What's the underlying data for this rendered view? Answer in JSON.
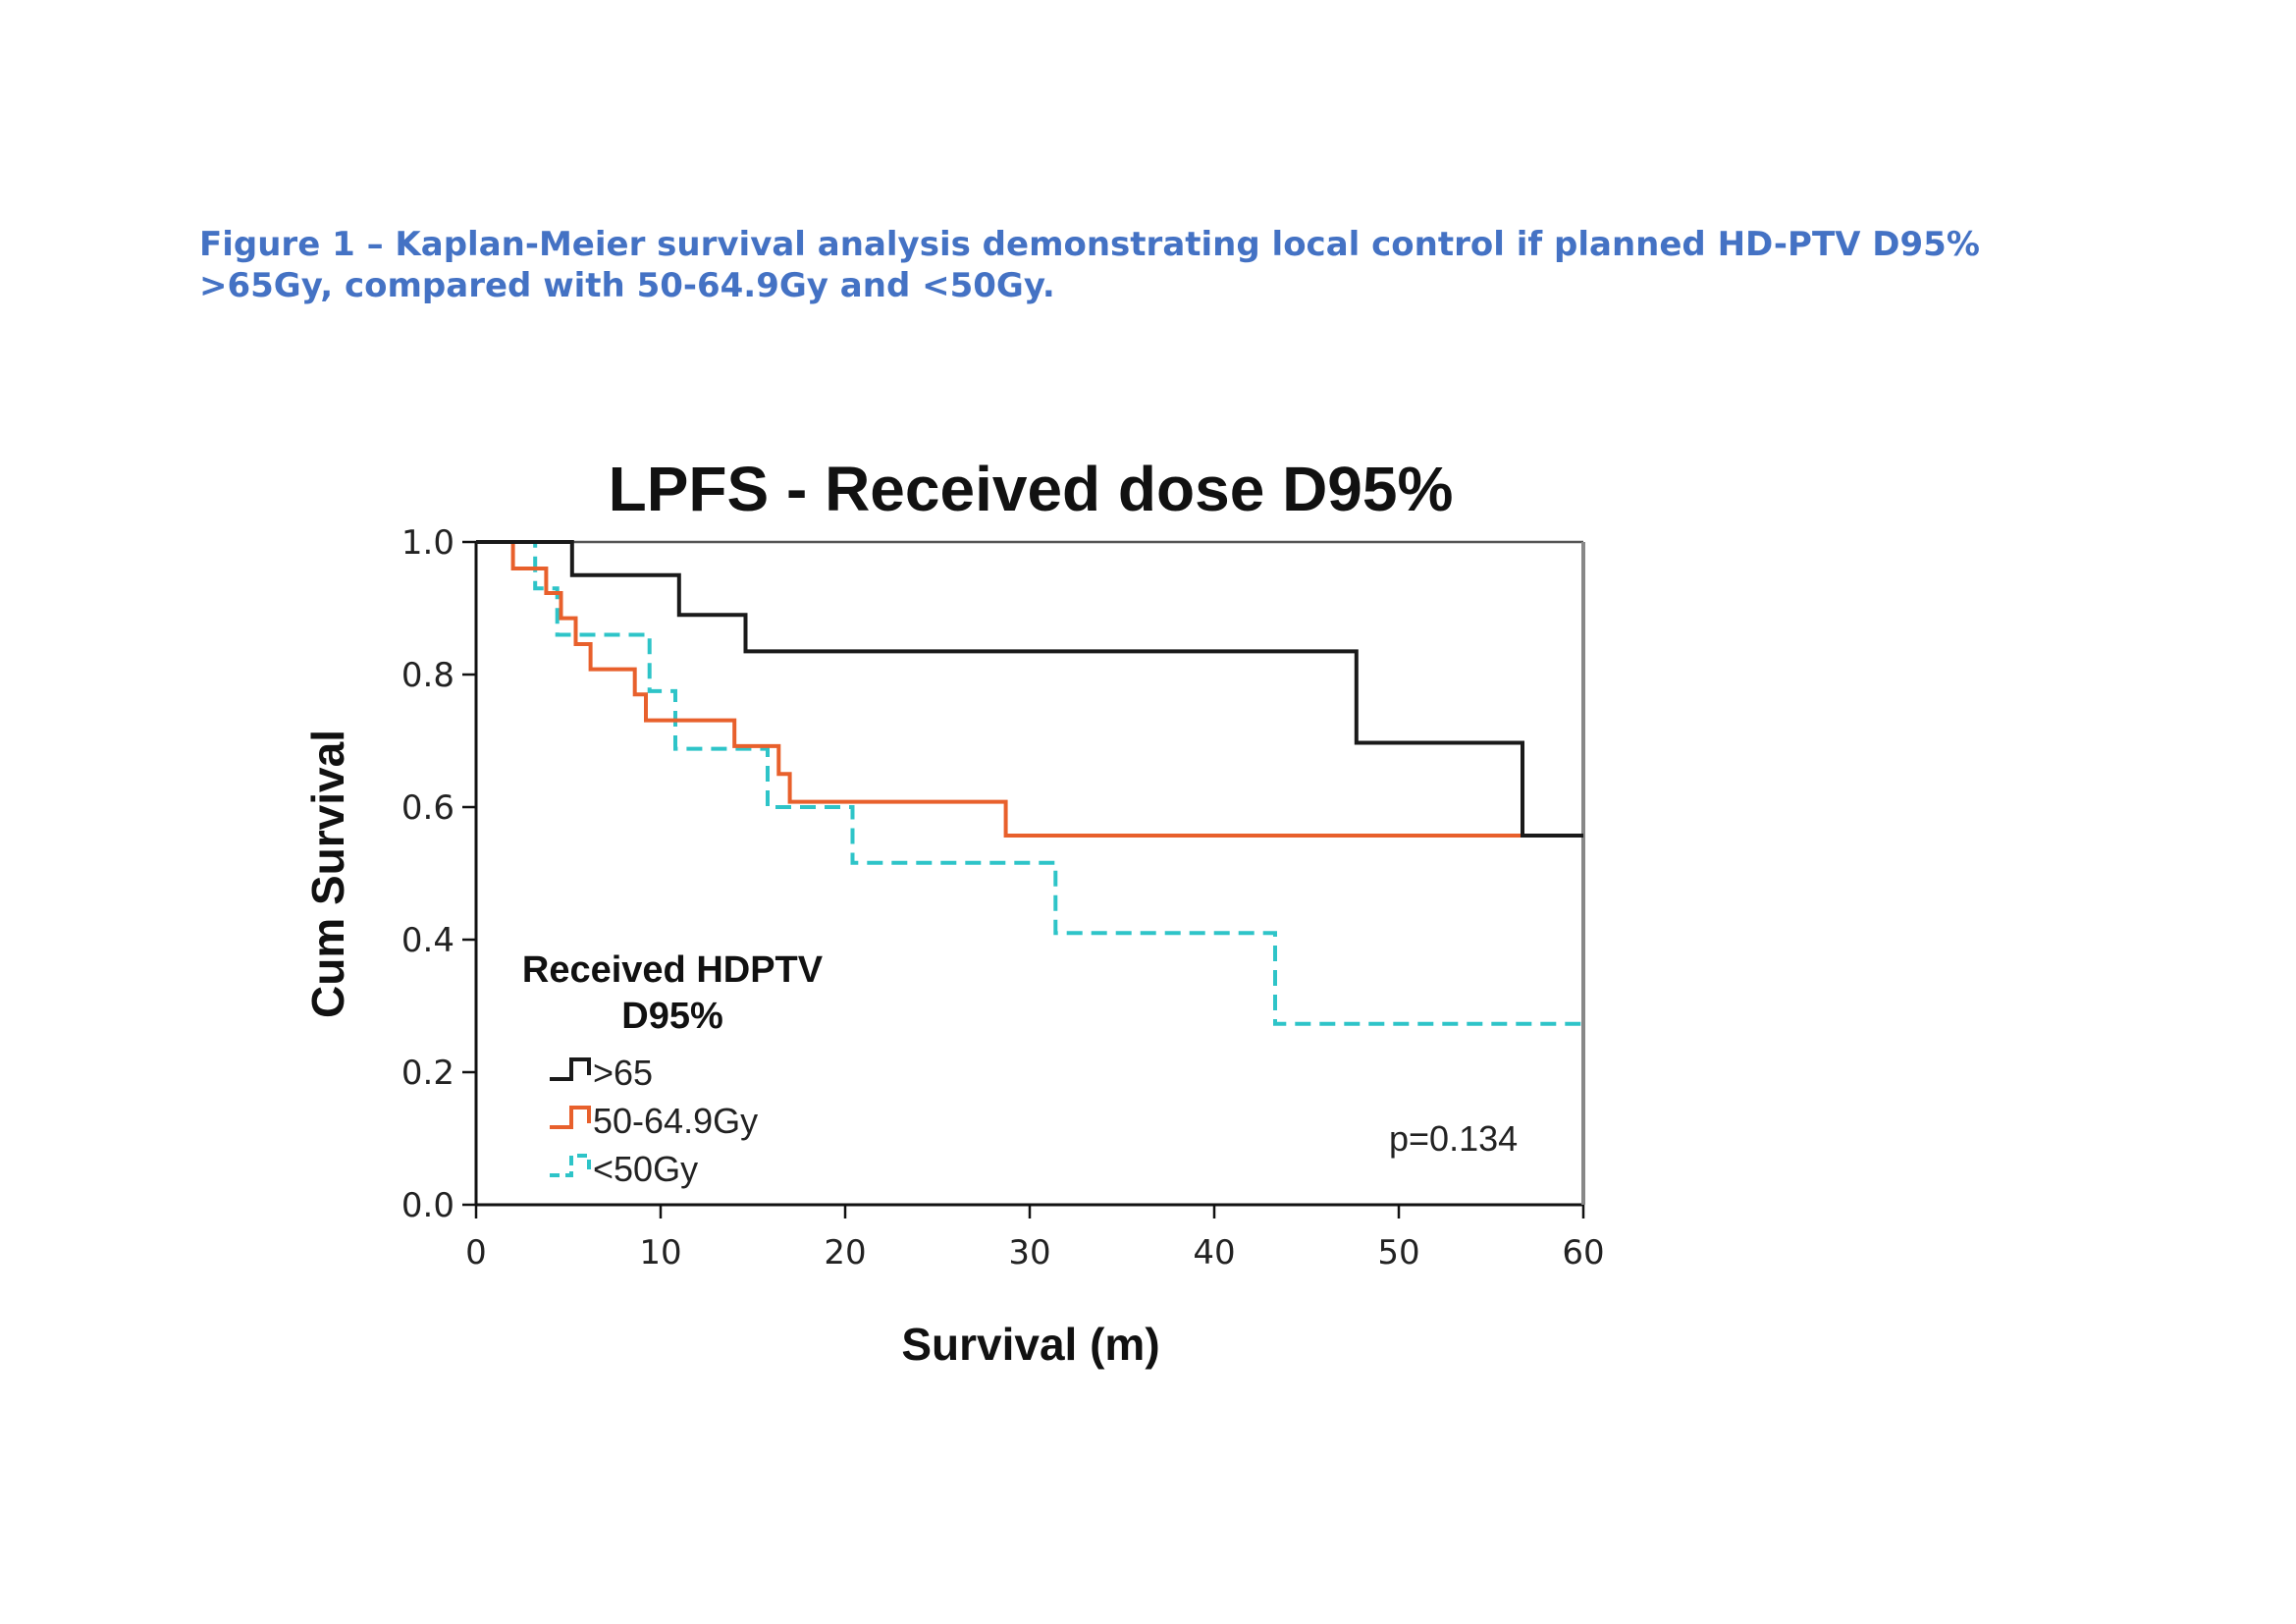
{
  "caption": {
    "line1": "Figure 1 – Kaplan-Meier survival analysis demonstrating local control if planned HD-PTV D95%",
    "line2": ">65Gy, compared with 50-64.9Gy and <50Gy."
  },
  "chart_data": {
    "type": "line",
    "step": true,
    "title": "LPFS - Received dose D95%",
    "xlabel": "Survival (m)",
    "ylabel": "Cum Survival",
    "xlim": [
      0,
      60
    ],
    "ylim": [
      0,
      1.0
    ],
    "xticks": [
      "0",
      "10",
      "20",
      "30",
      "40",
      "50",
      "60"
    ],
    "yticks": [
      "0.0",
      "0.2",
      "0.4",
      "0.6",
      "0.8",
      "1.0"
    ],
    "grid": false,
    "legend": {
      "title_line1": "Received HDPTV",
      "title_line2": "D95%",
      "placement": "bottom-left"
    },
    "annotation": "p=0.134",
    "series": [
      {
        "name": ">65",
        "color": "#1a1a1a",
        "dashed": false,
        "points": [
          [
            0,
            1.0
          ],
          [
            5.2,
            1.0
          ],
          [
            5.2,
            0.95
          ],
          [
            11,
            0.95
          ],
          [
            11,
            0.89
          ],
          [
            14.6,
            0.89
          ],
          [
            14.6,
            0.835
          ],
          [
            47.7,
            0.835
          ],
          [
            47.7,
            0.697
          ],
          [
            56.7,
            0.697
          ],
          [
            56.7,
            0.557
          ],
          [
            60,
            0.557
          ]
        ]
      },
      {
        "name": "50-64.9Gy",
        "color": "#e8602c",
        "dashed": false,
        "points": [
          [
            0,
            1.0
          ],
          [
            2,
            1.0
          ],
          [
            2,
            0.96
          ],
          [
            3.8,
            0.96
          ],
          [
            3.8,
            0.923
          ],
          [
            4.6,
            0.923
          ],
          [
            4.6,
            0.885
          ],
          [
            5.4,
            0.885
          ],
          [
            5.4,
            0.846
          ],
          [
            6.2,
            0.846
          ],
          [
            6.2,
            0.808
          ],
          [
            8.6,
            0.808
          ],
          [
            8.6,
            0.77
          ],
          [
            9.2,
            0.77
          ],
          [
            9.2,
            0.731
          ],
          [
            14,
            0.731
          ],
          [
            14,
            0.692
          ],
          [
            16.4,
            0.692
          ],
          [
            16.4,
            0.65
          ],
          [
            17,
            0.65
          ],
          [
            17,
            0.608
          ],
          [
            28.7,
            0.608
          ],
          [
            28.7,
            0.557
          ],
          [
            60,
            0.557
          ]
        ]
      },
      {
        "name": "<50Gy",
        "color": "#2ec4c8",
        "dashed": true,
        "points": [
          [
            0,
            1.0
          ],
          [
            3.2,
            1.0
          ],
          [
            3.2,
            0.93
          ],
          [
            4.4,
            0.93
          ],
          [
            4.4,
            0.86
          ],
          [
            9.4,
            0.86
          ],
          [
            9.4,
            0.775
          ],
          [
            10.8,
            0.775
          ],
          [
            10.8,
            0.688
          ],
          [
            15.8,
            0.688
          ],
          [
            15.8,
            0.6
          ],
          [
            20.4,
            0.6
          ],
          [
            20.4,
            0.516
          ],
          [
            31.4,
            0.516
          ],
          [
            31.4,
            0.41
          ],
          [
            43.3,
            0.41
          ],
          [
            43.3,
            0.273
          ],
          [
            60,
            0.273
          ]
        ]
      }
    ]
  }
}
